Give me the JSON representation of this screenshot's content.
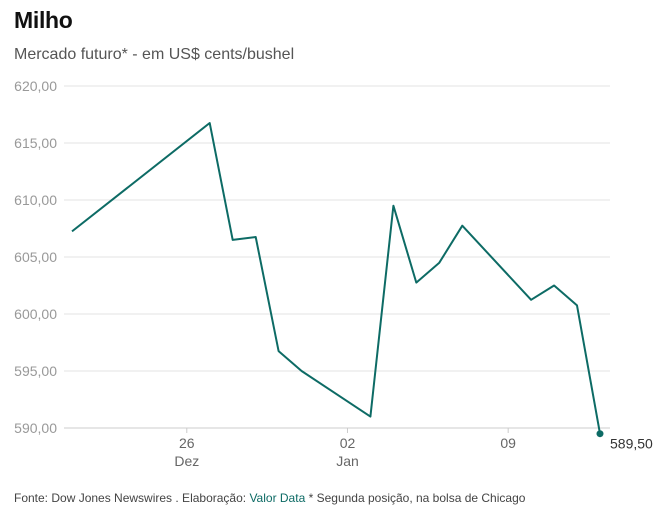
{
  "header": {
    "title": "Milho",
    "subtitle": "Mercado futuro* - em US$ cents/bushel"
  },
  "footer": {
    "prefix": "Fonte: Dow Jones Newswires . Elaboração: ",
    "link": "Valor Data",
    "suffix": " * Segunda posição, na bolsa de Chicago"
  },
  "colors": {
    "line": "#0d6b65",
    "grid": "#e3e3e3",
    "axis": "#cccccc"
  },
  "chart_data": {
    "type": "line",
    "title": "Milho",
    "subtitle": "Mercado futuro* - em US$ cents/bushel",
    "ylim": [
      590,
      620
    ],
    "y_ticks": [
      590,
      595,
      600,
      605,
      610,
      615,
      620
    ],
    "y_tick_labels": [
      "590,00",
      "595,00",
      "600,00",
      "605,00",
      "610,00",
      "615,00",
      "620,00"
    ],
    "x_ticks": [
      {
        "x": "2023-12-26",
        "line1": "26",
        "line2": "Dez"
      },
      {
        "x": "2024-01-02",
        "line1": "02",
        "line2": "Jan"
      },
      {
        "x": "2024-01-09",
        "line1": "09",
        "line2": ""
      }
    ],
    "grid": true,
    "series": [
      {
        "x": [
          "2023-12-21",
          "2023-12-27",
          "2023-12-28",
          "2023-12-29",
          "2023-12-30",
          "2023-12-31",
          "2024-01-03",
          "2024-01-04",
          "2024-01-05",
          "2024-01-06",
          "2024-01-07",
          "2024-01-10",
          "2024-01-11",
          "2024-01-12",
          "2024-01-13"
        ],
        "y": [
          607.25,
          616.75,
          606.5,
          606.75,
          596.75,
          595.0,
          591.0,
          609.5,
          602.75,
          604.5,
          607.75,
          601.25,
          602.5,
          600.75,
          589.5
        ]
      }
    ],
    "end_label": "589,50"
  }
}
